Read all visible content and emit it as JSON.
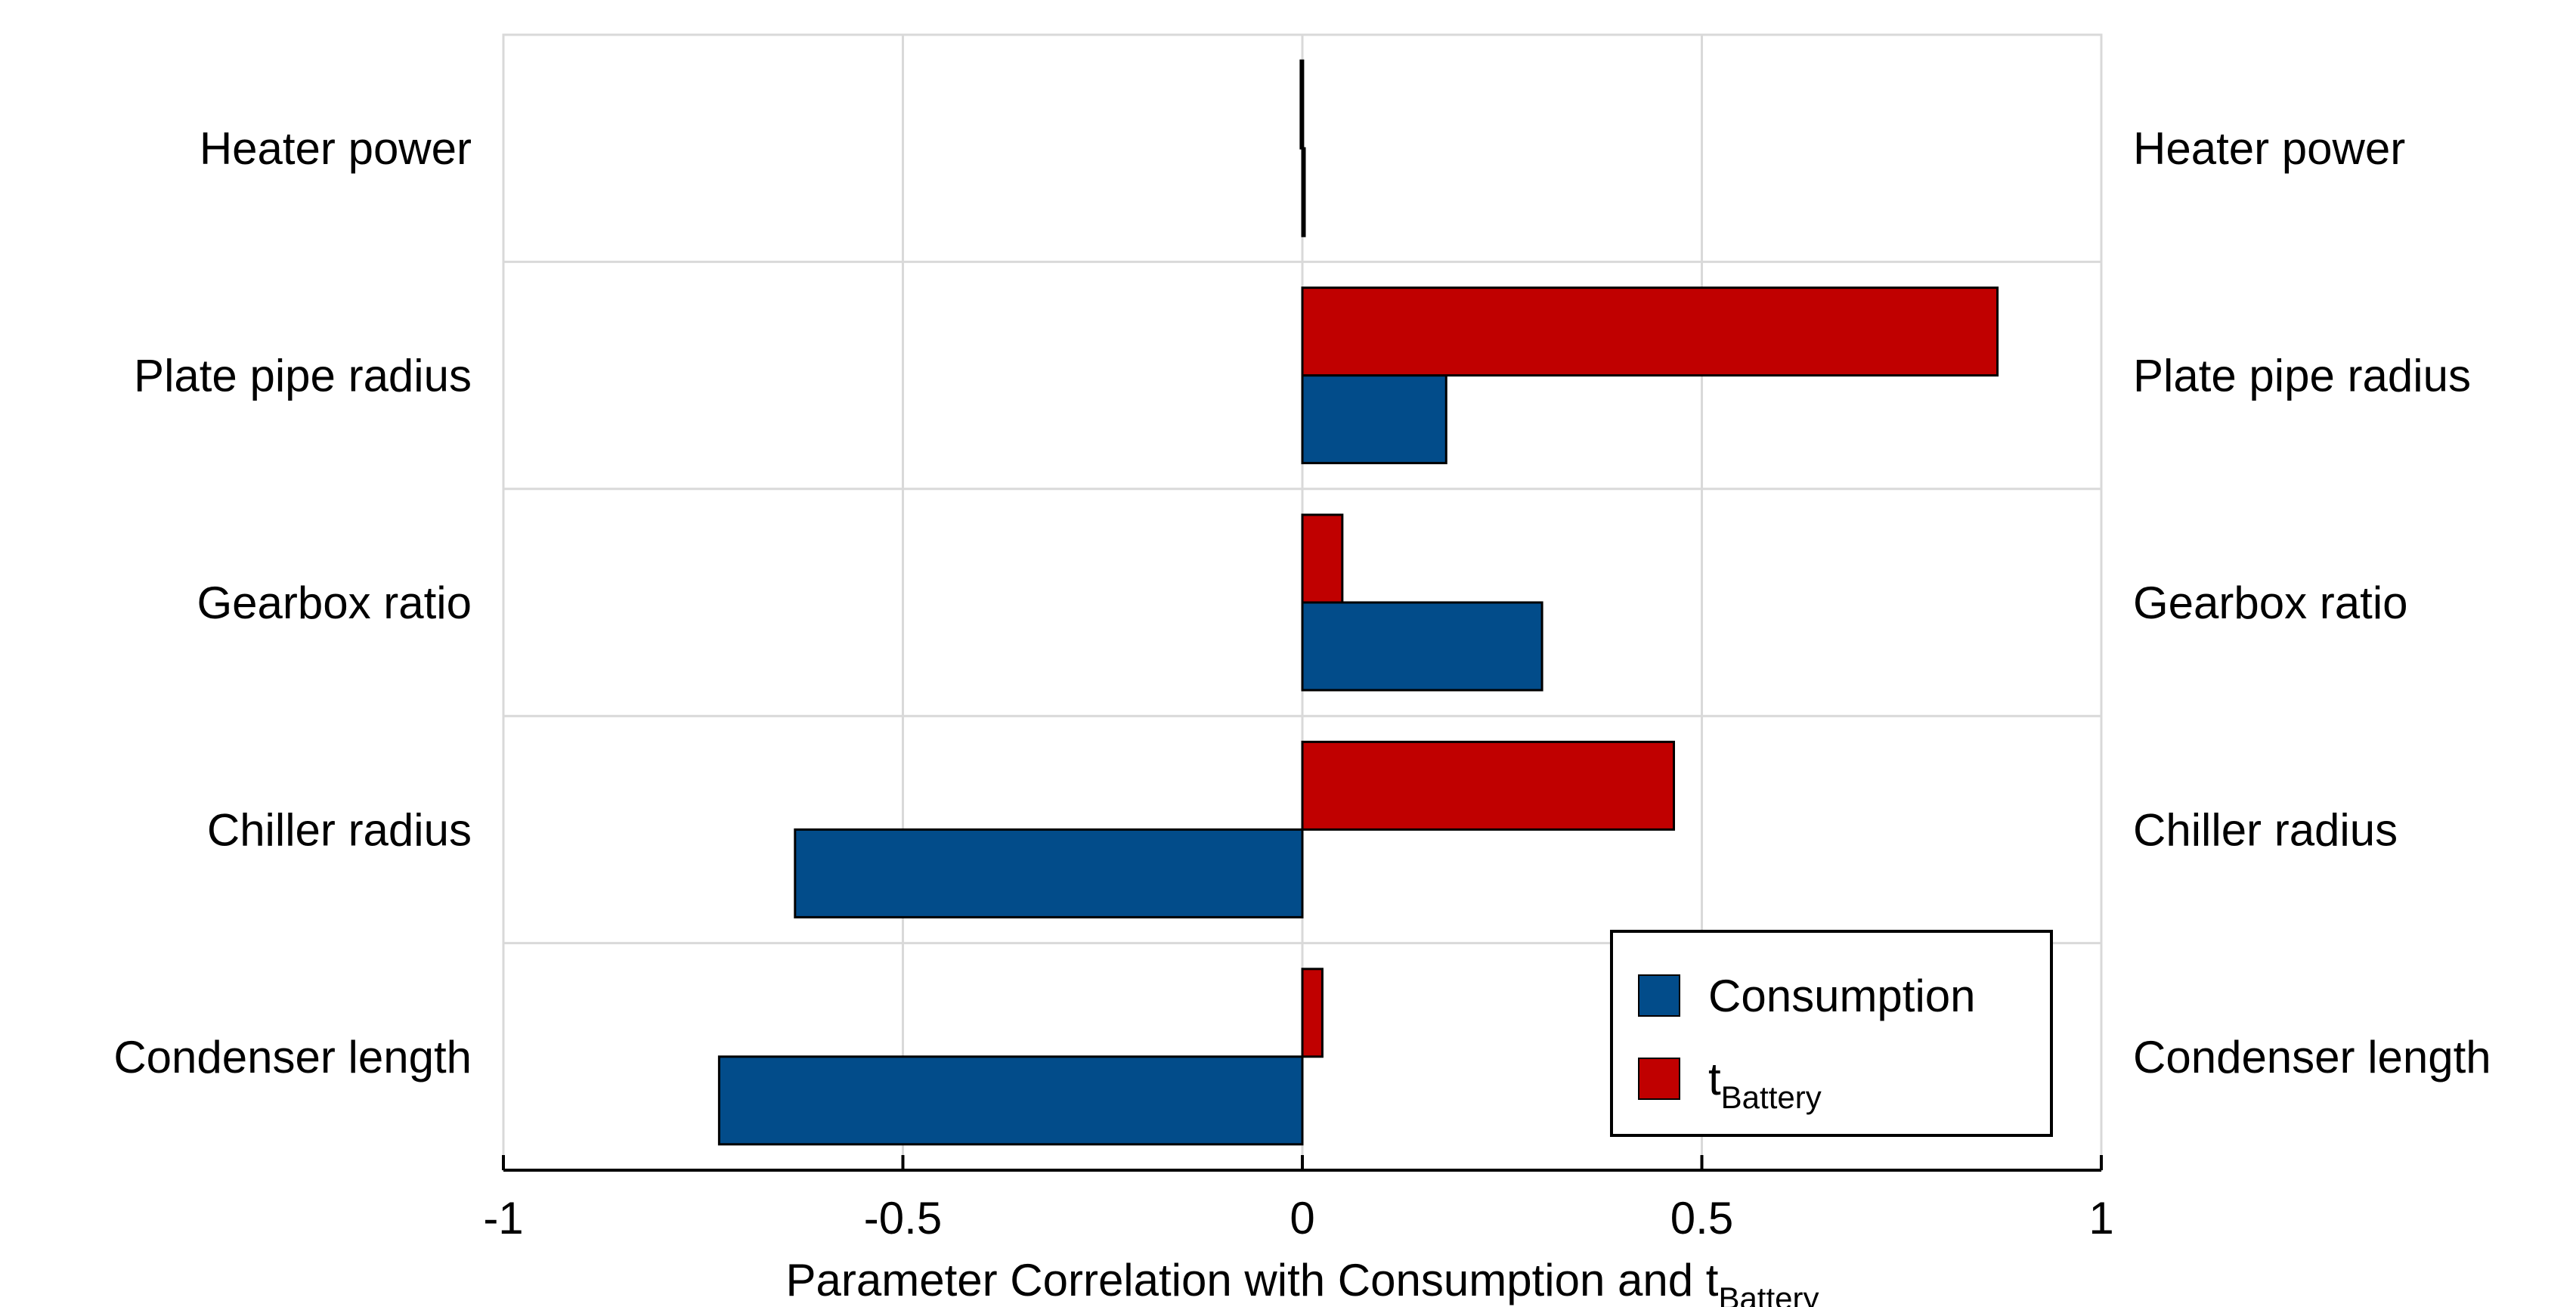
{
  "chart_data": {
    "type": "bar",
    "orientation": "horizontal",
    "categories": [
      "Heater power",
      "Plate pipe radius",
      "Gearbox ratio",
      "Chiller radius",
      "Condenser length"
    ],
    "series": [
      {
        "name": "Consumption",
        "color": "#024c8a",
        "values": [
          0.0,
          0.18,
          0.3,
          -0.635,
          -0.73
        ]
      },
      {
        "name": "t",
        "name_subscript": "Battery",
        "color": "#c00000",
        "values": [
          -0.002,
          0.87,
          0.05,
          0.465,
          0.025
        ]
      }
    ],
    "xlim": [
      -1,
      1
    ],
    "xticks": [
      -1,
      -0.5,
      0,
      0.5,
      1
    ],
    "xtick_labels": [
      "-1",
      "-0.5",
      "0",
      "0.5",
      "1"
    ],
    "xlabel": "Parameter Correlation with Consumption and t",
    "xlabel_subscript": "Battery",
    "grid": true,
    "legend_position": "bottom-right",
    "category_labels_both_sides": true
  }
}
